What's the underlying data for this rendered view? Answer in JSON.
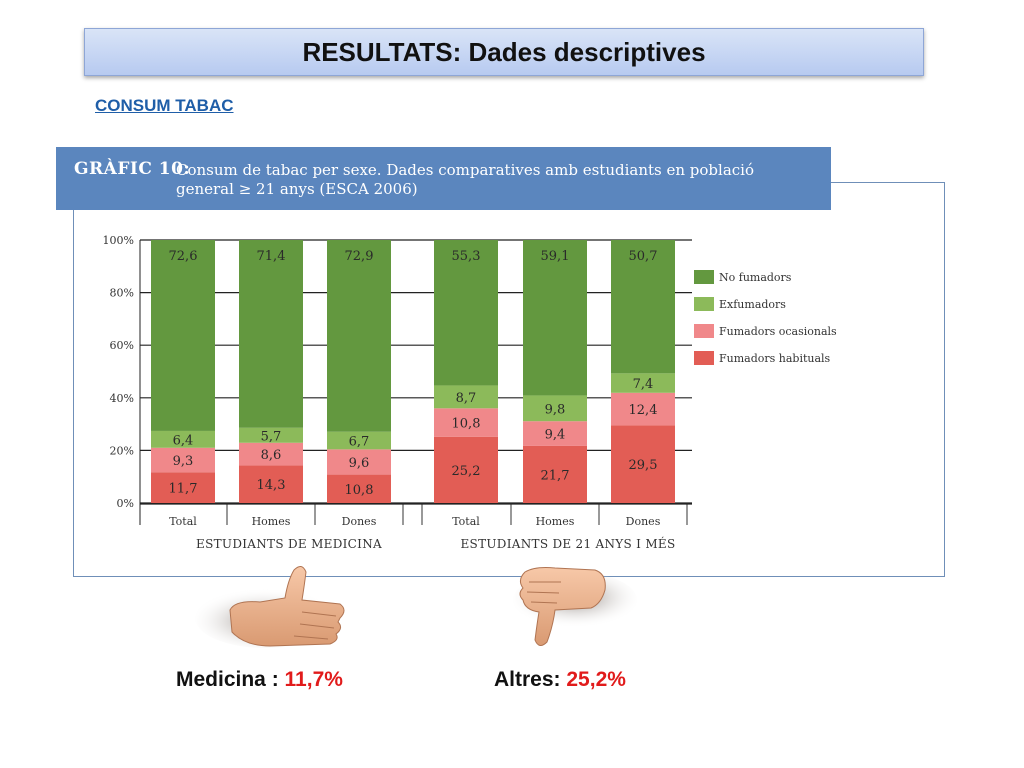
{
  "slide": {
    "title": "RESULTATS: Dades descriptives",
    "subtitle": "CONSUM TABAC"
  },
  "chart_header": {
    "label": "GRÀFIC 10:",
    "line1": "Consum de tabac per sexe. Dades comparatives amb estudiants en població",
    "line2": "general ≥ 21 anys (ESCA 2006)"
  },
  "chart_data": {
    "type": "bar",
    "stacked": true,
    "categories": [
      "Total",
      "Homes",
      "Dones",
      "Total",
      "Homes",
      "Dones"
    ],
    "groups": [
      {
        "name": "ESTUDIANTS DE MEDICINA",
        "categories": [
          "Total",
          "Homes",
          "Dones"
        ]
      },
      {
        "name": "ESTUDIANTS DE 21 ANYS I MÉS",
        "categories": [
          "Total",
          "Homes",
          "Dones"
        ]
      }
    ],
    "series": [
      {
        "name": "Fumadors habituals",
        "values": [
          11.7,
          14.3,
          10.8,
          25.2,
          21.7,
          29.5
        ],
        "labels": [
          "11,7",
          "14,3",
          "10,8",
          "25,2",
          "21,7",
          "29,5"
        ]
      },
      {
        "name": "Fumadors ocasionals",
        "values": [
          9.3,
          8.6,
          9.6,
          10.8,
          9.4,
          12.4
        ],
        "labels": [
          "9,3",
          "8,6",
          "9,6",
          "10,8",
          "9,4",
          "12,4"
        ]
      },
      {
        "name": "Exfumadors",
        "values": [
          6.4,
          5.7,
          6.7,
          8.7,
          9.8,
          7.4
        ],
        "labels": [
          "6,4",
          "5,7",
          "6,7",
          "8,7",
          "9,8",
          "7,4"
        ]
      },
      {
        "name": "No fumadors",
        "values": [
          72.6,
          71.4,
          72.9,
          55.3,
          59.1,
          50.7
        ],
        "labels": [
          "72,6",
          "71,4",
          "72,9",
          "55,3",
          "59,1",
          "50,7"
        ]
      }
    ],
    "colors": {
      "Fumadors habituals": "#e25d55",
      "Fumadors ocasionals": "#f0888a",
      "Exfumadors": "#8cba5a",
      "No fumadors": "#63983f"
    },
    "legend_order": [
      "No fumadors",
      "Exfumadors",
      "Fumadors ocasionals",
      "Fumadors habituals"
    ],
    "legend_position": "right",
    "ylim": [
      0,
      100
    ],
    "yticks": [
      "0%",
      "20%",
      "40%",
      "60%",
      "80%",
      "100%"
    ],
    "grid": true
  },
  "footer": {
    "medicina_label": "Medicina :",
    "medicina_value": "11,7%",
    "altres_label": "Altres:",
    "altres_value": "25,2%"
  },
  "icons": [
    "thumb-up-icon",
    "thumb-down-icon"
  ]
}
